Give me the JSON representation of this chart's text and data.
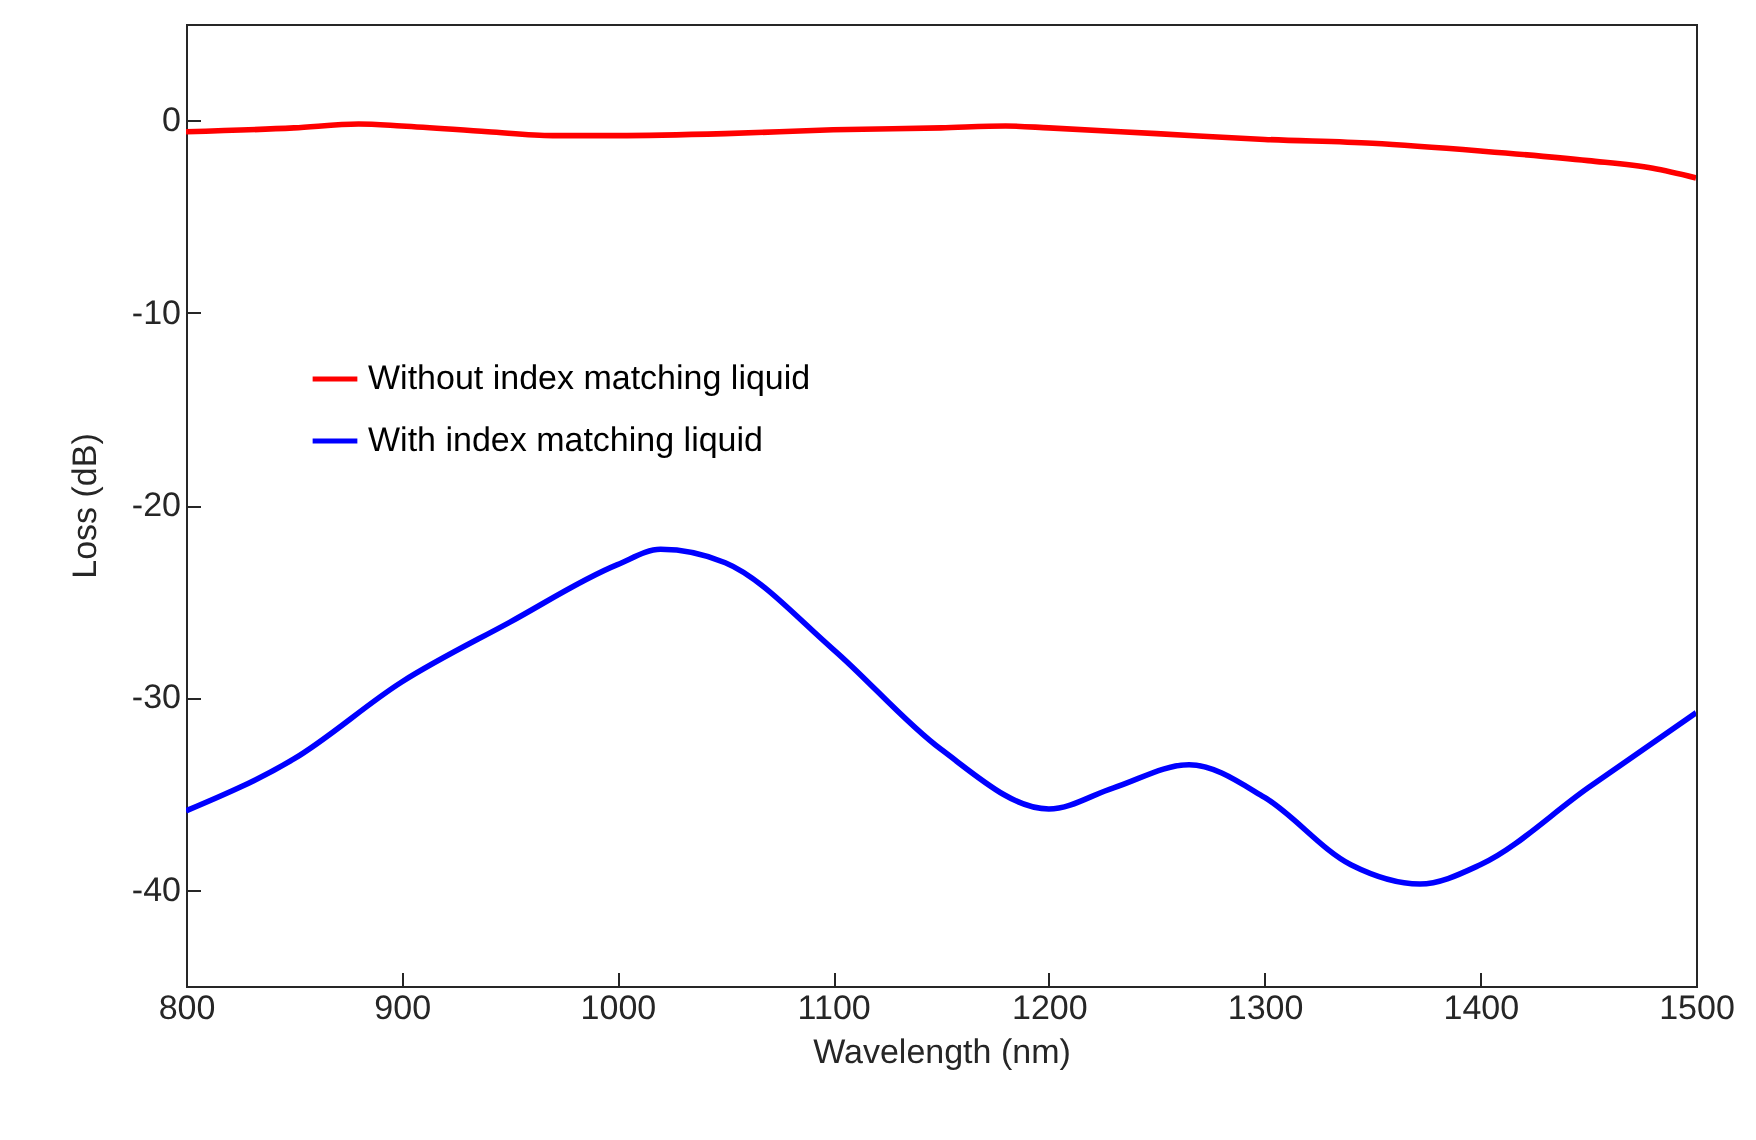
{
  "chart_data": {
    "type": "line",
    "xlabel": "Wavelength (nm)",
    "ylabel": "Loss (dB)",
    "xlim": [
      800,
      1500
    ],
    "ylim": [
      -45,
      5
    ],
    "xticks": [
      800,
      900,
      1000,
      1100,
      1200,
      1300,
      1400,
      1500
    ],
    "yticks": [
      -40,
      -30,
      -20,
      -10,
      0
    ],
    "grid": false,
    "legend": "top left",
    "marker": "none",
    "line_style": "solid",
    "series": [
      {
        "name": "Without index matching liquid",
        "color": "#ff0000",
        "x": [
          800,
          850,
          880,
          900,
          940,
          970,
          1000,
          1050,
          1100,
          1150,
          1180,
          1200,
          1250,
          1300,
          1350,
          1400,
          1450,
          1480,
          1500
        ],
        "values": [
          -0.6,
          -0.4,
          -0.2,
          -0.3,
          -0.6,
          -0.8,
          -0.8,
          -0.7,
          -0.5,
          -0.4,
          -0.3,
          -0.4,
          -0.7,
          -1.0,
          -1.2,
          -1.6,
          -2.1,
          -2.5,
          -3.0
        ]
      },
      {
        "name": "With index matching liquid",
        "color": "#0000ff",
        "x": [
          800,
          850,
          900,
          950,
          1000,
          1020,
          1050,
          1100,
          1150,
          1200,
          1230,
          1265,
          1300,
          1340,
          1372,
          1400,
          1450,
          1500
        ],
        "values": [
          -35.9,
          -33.2,
          -29.2,
          -26.1,
          -23.1,
          -22.3,
          -23.0,
          -27.5,
          -32.7,
          -35.8,
          -34.7,
          -33.5,
          -35.2,
          -38.7,
          -39.7,
          -38.7,
          -34.7,
          -30.8
        ]
      }
    ]
  }
}
